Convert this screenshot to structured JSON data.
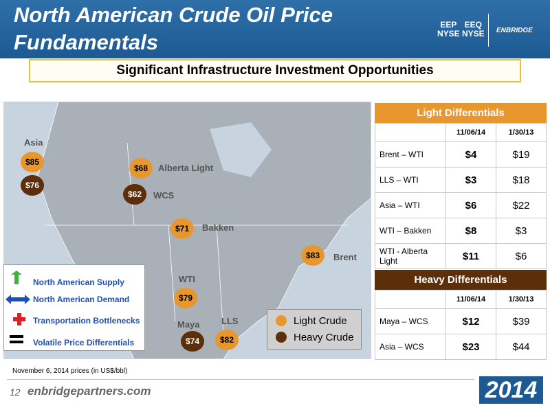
{
  "header": {
    "title": "North American Crude Oil Price Fundamentals",
    "logos": [
      "EEP",
      "NYSE",
      "EEQ",
      "NYSE",
      "ENBRIDGE"
    ]
  },
  "banner": "Significant Infrastructure Investment Opportunities",
  "map": {
    "labels": [
      "Asia",
      "Alberta Light",
      "WCS",
      "Bakken",
      "Brent",
      "WTI",
      "Maya",
      "LLS"
    ],
    "markers": [
      {
        "price": "$85",
        "crude": "light"
      },
      {
        "price": "$76",
        "crude": "heavy"
      },
      {
        "price": "$68",
        "crude": "light"
      },
      {
        "price": "$62",
        "crude": "heavy"
      },
      {
        "price": "$71",
        "crude": "light"
      },
      {
        "price": "$83",
        "crude": "light"
      },
      {
        "price": "$79",
        "crude": "light"
      },
      {
        "price": "$74",
        "crude": "heavy"
      },
      {
        "price": "$82",
        "crude": "light"
      }
    ],
    "legend": [
      "Light Crude",
      "Heavy Crude"
    ],
    "drivers": [
      "North American Supply",
      "North American Demand",
      "Transportation Bottlenecks",
      "Volatile Price Differentials"
    ]
  },
  "light_table": {
    "title": "Light Differentials",
    "columns": [
      "11/06/14",
      "1/30/13"
    ],
    "rows": [
      [
        "Brent – WTI",
        "$4",
        "$19"
      ],
      [
        "LLS – WTI",
        "$3",
        "$18"
      ],
      [
        "Asia – WTI",
        "$6",
        "$22"
      ],
      [
        "WTI – Bakken",
        "$8",
        "$3"
      ],
      [
        "WTI - Alberta Light",
        "$11",
        "$6"
      ]
    ]
  },
  "heavy_table": {
    "title": "Heavy Differentials",
    "columns": [
      "11/06/14",
      "1/30/13"
    ],
    "rows": [
      [
        "Maya – WCS",
        "$12",
        "$39"
      ],
      [
        "Asia – WCS",
        "$23",
        "$44"
      ]
    ]
  },
  "footer": {
    "note": "November 6, 2014 prices (in US$/bbl)",
    "page": "12",
    "url": "enbridgepartners.com",
    "year": "2014"
  }
}
